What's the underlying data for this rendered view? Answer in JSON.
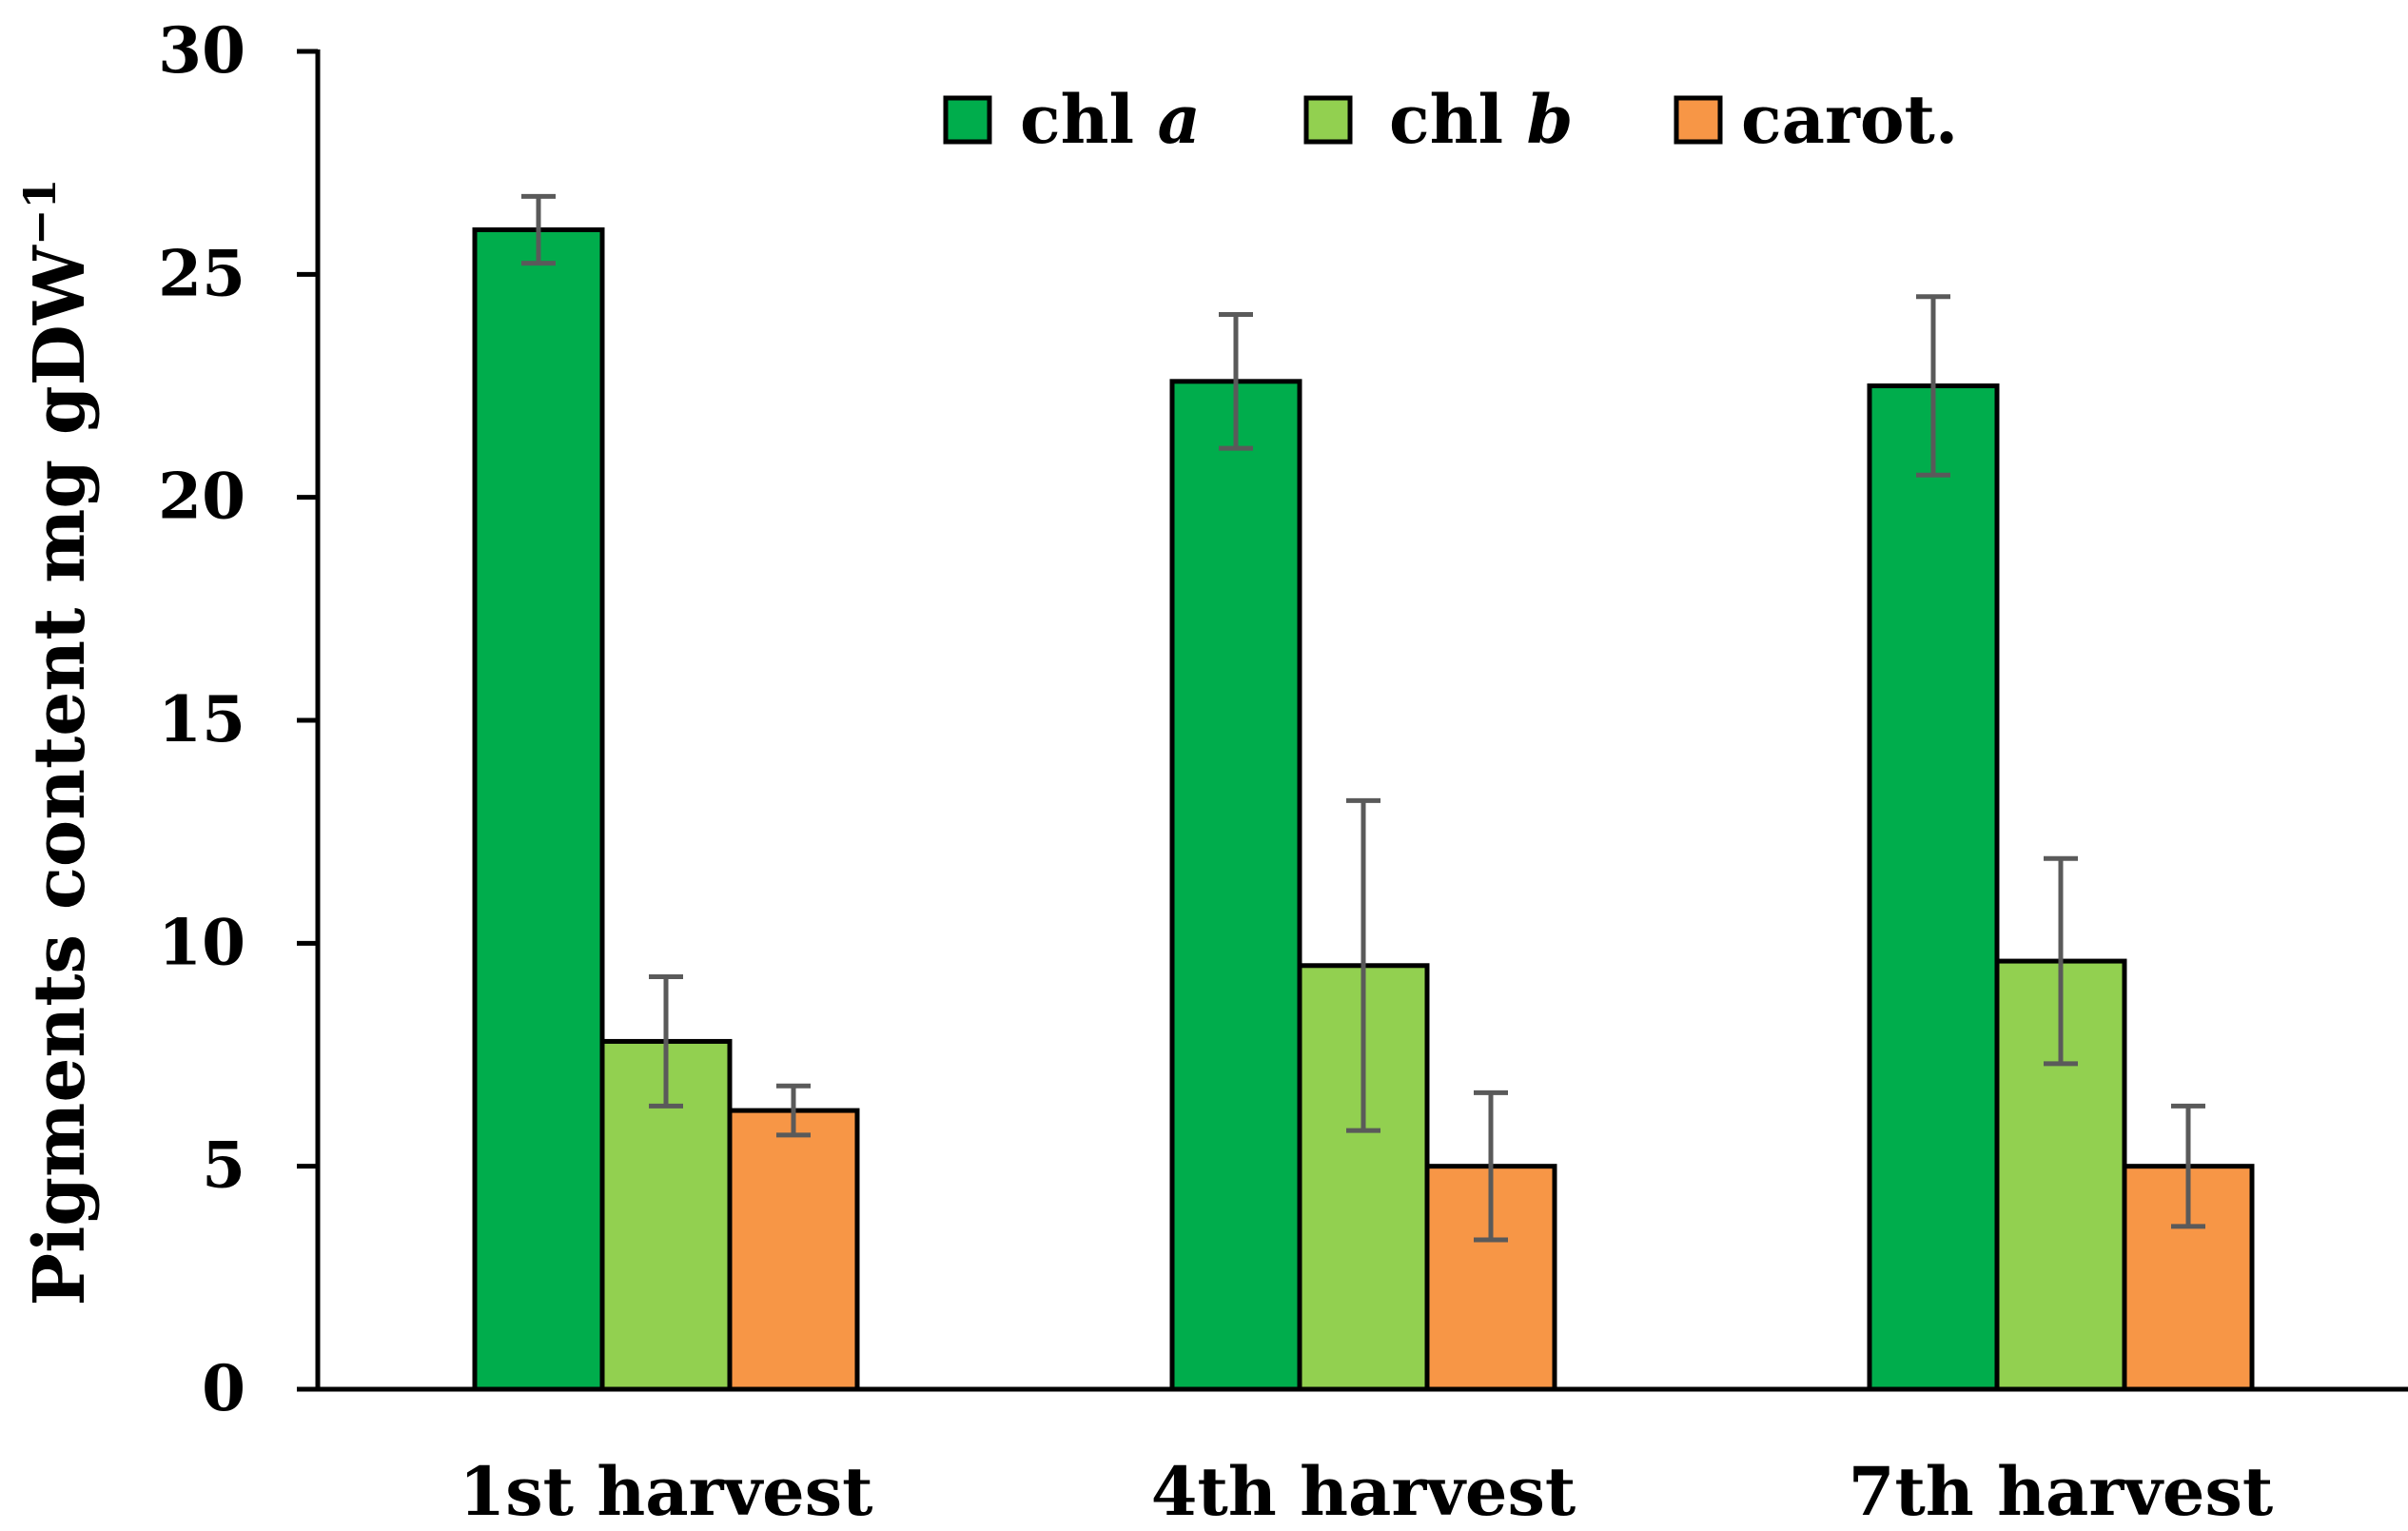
{
  "chart_data": {
    "type": "bar",
    "title": "",
    "xlabel": "",
    "ylabel": {
      "main": "Pigments content mg gDW",
      "superscript": "−1"
    },
    "ylim": [
      0,
      30
    ],
    "yticks": [
      0,
      5,
      10,
      15,
      20,
      25,
      30
    ],
    "ytick_labels": [
      "0",
      "5",
      "10",
      "15",
      "20",
      "25",
      "30"
    ],
    "grid": false,
    "legend_position": "top-center",
    "categories": [
      "1st harvest",
      "4th harvest",
      "7th harvest"
    ],
    "series": [
      {
        "name": "chl a",
        "legend_prefix": "chl ",
        "legend_italic": "a",
        "color": "#00AD4C",
        "values": [
          26.0,
          22.6,
          22.5
        ],
        "errors": [
          0.75,
          1.5,
          2.0
        ]
      },
      {
        "name": "chl b",
        "legend_prefix": "chl ",
        "legend_italic": "b",
        "color": "#92D050",
        "values": [
          7.8,
          9.5,
          9.6
        ],
        "errors": [
          1.45,
          3.7,
          2.3
        ]
      },
      {
        "name": "carot.",
        "legend_prefix": "carot.",
        "legend_italic": "",
        "color": "#F79646",
        "values": [
          6.25,
          5.0,
          5.0
        ],
        "errors": [
          0.55,
          1.65,
          1.35
        ]
      }
    ],
    "error_bar_color": "#5A5A5A",
    "bar_outline_color": "#000000"
  }
}
